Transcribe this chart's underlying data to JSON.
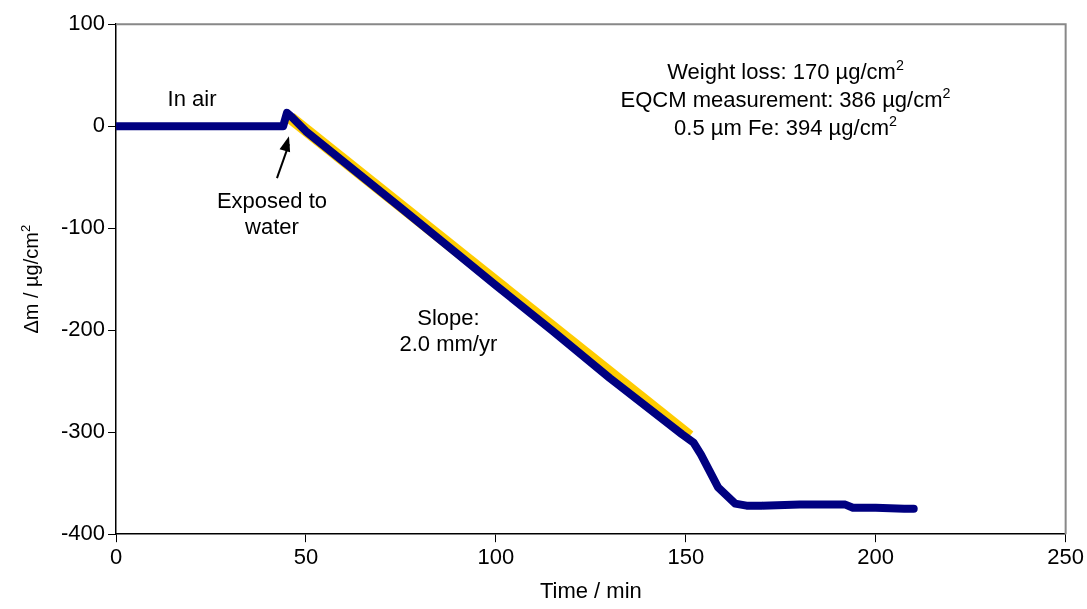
{
  "chart_data": {
    "type": "line",
    "xlabel": "Time / min",
    "ylabel": "Δm / µg/cm$^{2}$",
    "xlim": [
      0,
      250
    ],
    "xticks": [
      0,
      50,
      100,
      150,
      200,
      250
    ],
    "ylim": [
      -400,
      100
    ],
    "yticks": [
      -400,
      -300,
      -200,
      -100,
      0,
      100
    ],
    "grid": false,
    "legend": false,
    "marker": "none",
    "line_style": "solid",
    "series": [
      {
        "color": "#000080",
        "x": [
          0,
          20,
          44,
          45,
          46,
          50,
          75,
          100,
          115,
          130,
          149,
          152,
          154,
          158.5,
          163,
          166,
          170,
          180,
          192,
          194,
          200,
          207.5,
          210
        ],
        "values": [
          0,
          0,
          0,
          13,
          10,
          -5,
          -80,
          -156,
          -201,
          -247,
          -302,
          -310,
          -322,
          -354,
          -370,
          -372,
          -372,
          -371,
          -371,
          -374,
          -374,
          -375,
          -375
        ]
      },
      {
        "color": "#ffcc00",
        "x": [
          46,
          151
        ],
        "values": [
          8,
          -304
        ]
      }
    ],
    "annotations": [
      {
        "text": "In air",
        "x": 20,
        "y": 0
      },
      {
        "text": "Exposed to\nwater",
        "x": 45,
        "y": 0
      },
      "Slope:\n2.0 mm/yr",
      "Weight loss: 170 µg/cm$^{2}$",
      "EQCM measurement: 386 µg/cm$^{2}$",
      "0.5 µm Fe: 394 µg/cm$^{2}$"
    ]
  }
}
